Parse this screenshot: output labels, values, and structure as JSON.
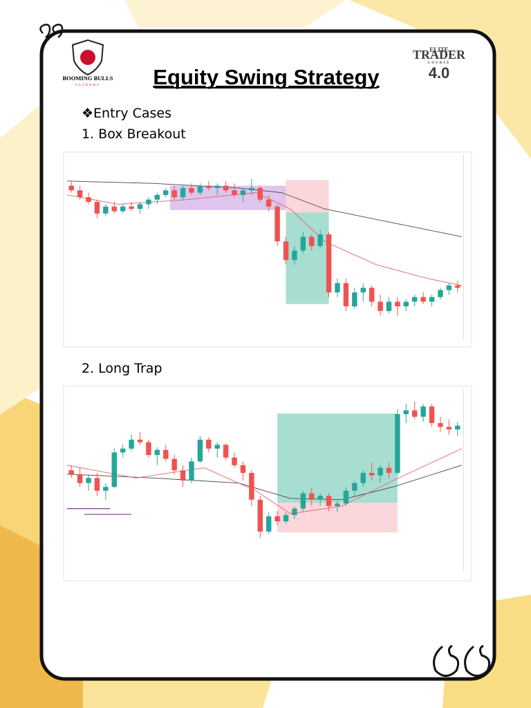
{
  "logo_left": {
    "name": "BOOMING BULLS",
    "sub": "ACADEMY"
  },
  "logo_right": {
    "top": "ELITE",
    "main": "TRADER",
    "sub": "COURSE",
    "version": "4.0"
  },
  "title": "Equity Swing Strategy",
  "entry_cases": "❖Entry Cases",
  "case_1": "1. Box Breakout",
  "case_2": "2. Long Trap",
  "charts": [
    {
      "ylim": [
        665,
        738
      ],
      "up_color": "#26a69a",
      "down_color": "#ef5350",
      "ohlc": [
        [
          728,
          730,
          725,
          726
        ],
        [
          726,
          728,
          722,
          723
        ],
        [
          723,
          725,
          720,
          721
        ],
        [
          721,
          722,
          714,
          716
        ],
        [
          716,
          720,
          715,
          719
        ],
        [
          719,
          721,
          716,
          717
        ],
        [
          717,
          720,
          716,
          719
        ],
        [
          719,
          721,
          717,
          718
        ],
        [
          718,
          721,
          716,
          720
        ],
        [
          720,
          723,
          718,
          722
        ],
        [
          722,
          725,
          720,
          724
        ],
        [
          724,
          727,
          723,
          726
        ],
        [
          726,
          728,
          722,
          723
        ],
        [
          723,
          728,
          722,
          727
        ],
        [
          727,
          729,
          724,
          725
        ],
        [
          725,
          729,
          724,
          728
        ],
        [
          728,
          730,
          726,
          727
        ],
        [
          727,
          729,
          724,
          728
        ],
        [
          728,
          730,
          725,
          726
        ],
        [
          726,
          729,
          723,
          724
        ],
        [
          724,
          727,
          721,
          726
        ],
        [
          726,
          731,
          724,
          727
        ],
        [
          727,
          728,
          721,
          722
        ],
        [
          722,
          724,
          717,
          719
        ],
        [
          719,
          720,
          702,
          704
        ],
        [
          704,
          706,
          694,
          696
        ],
        [
          696,
          702,
          694,
          700
        ],
        [
          700,
          708,
          699,
          706
        ],
        [
          706,
          707,
          700,
          702
        ],
        [
          702,
          709,
          701,
          707
        ],
        [
          707,
          708,
          680,
          682
        ],
        [
          682,
          688,
          680,
          686
        ],
        [
          686,
          688,
          674,
          676
        ],
        [
          676,
          684,
          675,
          682
        ],
        [
          682,
          686,
          678,
          684
        ],
        [
          684,
          685,
          676,
          678
        ],
        [
          678,
          681,
          672,
          674
        ],
        [
          674,
          680,
          673,
          678
        ],
        [
          678,
          680,
          672,
          676
        ],
        [
          676,
          679,
          674,
          678
        ],
        [
          678,
          681,
          676,
          680
        ],
        [
          680,
          682,
          677,
          678
        ],
        [
          678,
          681,
          676,
          680
        ],
        [
          680,
          684,
          679,
          683
        ],
        [
          683,
          686,
          681,
          685
        ],
        [
          685,
          687,
          682,
          684
        ]
      ],
      "boxes": [
        {
          "x0": 12,
          "x1": 25.5,
          "y0": 717.5,
          "y1": 728,
          "color": "#b57fd6"
        },
        {
          "x0": 25.5,
          "x1": 30.5,
          "y0": 716.5,
          "y1": 730.5,
          "color": "#f7a3ad"
        },
        {
          "x0": 25.5,
          "x1": 30.5,
          "y0": 677,
          "y1": 716.5,
          "color": "#3fb59a"
        }
      ],
      "moving_averages": [
        {
          "color": "#444444",
          "x": [
            0,
            10,
            20,
            25,
            30,
            38,
            46
          ],
          "values": [
            730,
            729,
            727,
            725,
            718,
            712,
            706
          ]
        },
        {
          "color": "#e0636b",
          "x": [
            0,
            6,
            14,
            22,
            26,
            30,
            36,
            42,
            46
          ],
          "values": [
            724,
            720,
            722,
            725,
            718,
            704,
            694,
            688,
            685
          ]
        }
      ],
      "lines": []
    },
    {
      "ylim": [
        755,
        885
      ],
      "up_color": "#26a69a",
      "down_color": "#ef5350",
      "ohlc": [
        [
          828,
          832,
          822,
          825
        ],
        [
          825,
          830,
          815,
          818
        ],
        [
          818,
          825,
          812,
          822
        ],
        [
          822,
          826,
          808,
          812
        ],
        [
          812,
          818,
          805,
          815
        ],
        [
          815,
          845,
          814,
          842
        ],
        [
          842,
          848,
          838,
          845
        ],
        [
          845,
          856,
          843,
          852
        ],
        [
          852,
          858,
          848,
          850
        ],
        [
          850,
          852,
          838,
          840
        ],
        [
          840,
          846,
          832,
          844
        ],
        [
          844,
          848,
          835,
          837
        ],
        [
          837,
          840,
          825,
          828
        ],
        [
          828,
          832,
          815,
          820
        ],
        [
          820,
          838,
          818,
          835
        ],
        [
          835,
          855,
          834,
          852
        ],
        [
          852,
          854,
          842,
          845
        ],
        [
          845,
          850,
          838,
          848
        ],
        [
          848,
          849,
          836,
          838
        ],
        [
          838,
          842,
          830,
          832
        ],
        [
          832,
          835,
          820,
          826
        ],
        [
          826,
          828,
          800,
          805
        ],
        [
          805,
          808,
          775,
          780
        ],
        [
          780,
          795,
          778,
          792
        ],
        [
          792,
          796,
          785,
          788
        ],
        [
          788,
          795,
          786,
          793
        ],
        [
          793,
          800,
          790,
          798
        ],
        [
          798,
          812,
          796,
          810
        ],
        [
          810,
          814,
          800,
          805
        ],
        [
          805,
          810,
          800,
          808
        ],
        [
          808,
          810,
          796,
          800
        ],
        [
          800,
          804,
          795,
          802
        ],
        [
          802,
          815,
          800,
          812
        ],
        [
          812,
          820,
          808,
          818
        ],
        [
          818,
          828,
          815,
          826
        ],
        [
          826,
          834,
          820,
          824
        ],
        [
          824,
          832,
          818,
          830
        ],
        [
          830,
          834,
          822,
          826
        ],
        [
          826,
          876,
          824,
          872
        ],
        [
          872,
          880,
          865,
          875
        ],
        [
          875,
          882,
          868,
          870
        ],
        [
          870,
          880,
          866,
          878
        ],
        [
          878,
          880,
          862,
          865
        ],
        [
          865,
          870,
          858,
          862
        ],
        [
          862,
          868,
          856,
          860
        ],
        [
          860,
          866,
          855,
          863
        ]
      ],
      "boxes": [
        {
          "x0": 24.5,
          "x1": 38.5,
          "y0": 802.6,
          "y1": 872.5,
          "color": "#3fb59a"
        },
        {
          "x0": 24.5,
          "x1": 38.5,
          "y0": 779.4,
          "y1": 802.6,
          "color": "#f7a3ad"
        }
      ],
      "moving_averages": [
        {
          "color": "#444444",
          "x": [
            0,
            10,
            20,
            26,
            32,
            38,
            46
          ],
          "values": [
            825,
            822,
            818,
            806,
            805,
            815,
            832
          ]
        },
        {
          "color": "#e0636b",
          "x": [
            0,
            8,
            16,
            22,
            26,
            32,
            38,
            46
          ],
          "values": [
            832,
            822,
            830,
            812,
            794,
            800,
            820,
            845
          ]
        }
      ],
      "lines": [
        {
          "color": "#7b3c8c",
          "x0": 0,
          "x1": 5,
          "value": 798
        },
        {
          "color": "#7b3c8c",
          "x0": 2,
          "x1": 7.5,
          "value": 793.5
        }
      ]
    }
  ]
}
